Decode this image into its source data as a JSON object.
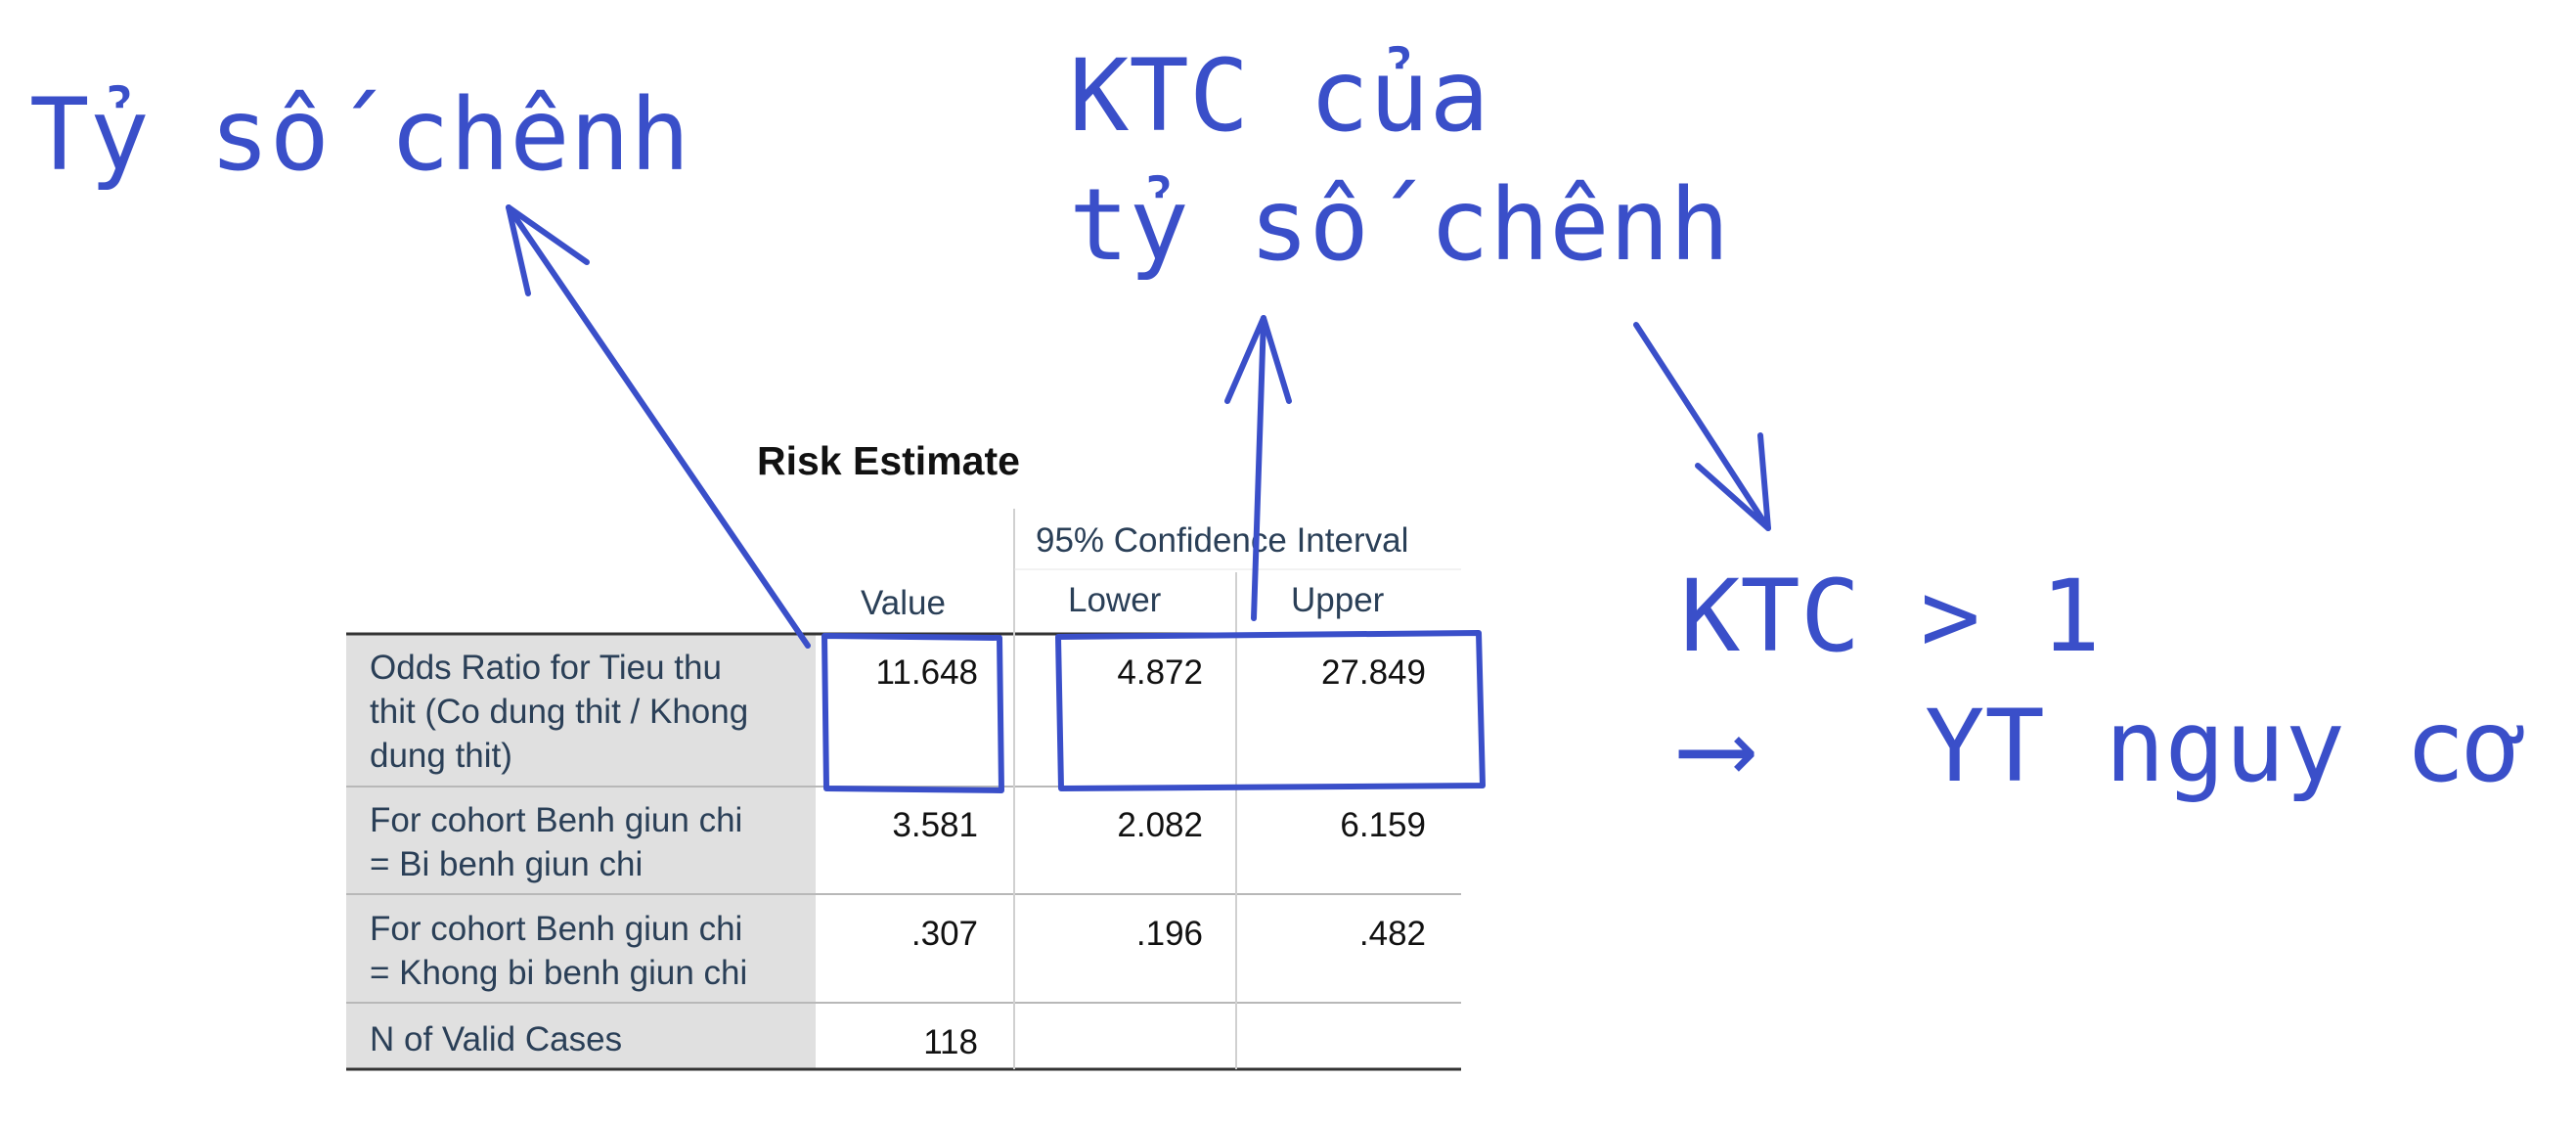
{
  "annotations": {
    "odds_ratio_label": "Tỷ số chênh",
    "ci_label_line1": "KTC của",
    "ci_label_line2": "tỷ số chênh",
    "conclusion_line1": "KTC > 1",
    "conclusion_line2": "YT nguy cơ",
    "conclusion_arrow": "⟶"
  },
  "table": {
    "title": "Risk Estimate",
    "ci_header": "95% Confidence Interval",
    "columns": [
      "Value",
      "Lower",
      "Upper"
    ],
    "rows": [
      {
        "label": "Odds Ratio for Tieu thu\nthit (Co dung thit / Khong\ndung thit)",
        "value": "11.648",
        "lower": "4.872",
        "upper": "27.849"
      },
      {
        "label": "For cohort Benh giun chi\n= Bi benh giun chi",
        "value": "3.581",
        "lower": "2.082",
        "upper": "6.159"
      },
      {
        "label": "For cohort Benh giun chi\n= Khong bi benh giun chi",
        "value": ".307",
        "lower": ".196",
        "upper": ".482"
      },
      {
        "label": "N of Valid Cases",
        "value": "118",
        "lower": "",
        "upper": ""
      }
    ]
  },
  "colors": {
    "annotation_ink": "#3a4fc9",
    "row_header_bg": "#e0e0e0"
  }
}
